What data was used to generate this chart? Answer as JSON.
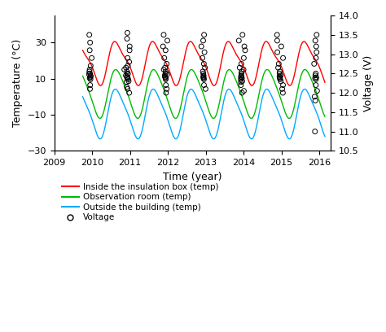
{
  "xlabel": "Time (year)",
  "ylabel_left": "Temperature (°C)",
  "ylabel_right": "Voltage (V)",
  "xlim": [
    2009.5,
    2016.3
  ],
  "ylim_left": [
    -30,
    45
  ],
  "ylim_right": [
    10.5,
    14.0
  ],
  "yticks_left": [
    -30,
    -10,
    10,
    30
  ],
  "yticks_right": [
    10.5,
    11.0,
    11.5,
    12.0,
    12.5,
    13.0,
    13.5,
    14.0
  ],
  "xticks": [
    2009,
    2010,
    2011,
    2012,
    2013,
    2014,
    2015,
    2016
  ],
  "line_inside_color": "#ff0000",
  "line_obs_color": "#00bb00",
  "line_outside_color": "#00aaff",
  "legend_labels": [
    "Inside the insulation box (temp)",
    "Observation room (temp)",
    "Outside the building (temp)",
    "Voltage"
  ],
  "inside_amp": 11,
  "inside_mean": 19,
  "inside_amp2": 3,
  "obs_amp": 13,
  "obs_mean": 2,
  "obs_amp2": 2,
  "outside_amp": 13,
  "outside_mean": -9,
  "outside_amp2": 2.5
}
